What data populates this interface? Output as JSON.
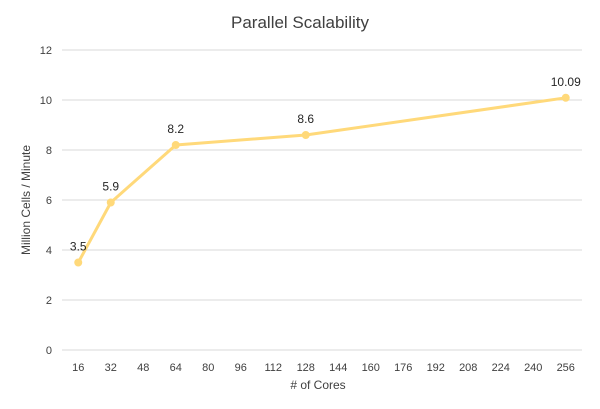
{
  "chart_data": {
    "type": "line",
    "title": "Parallel Scalability",
    "xlabel": "# of Cores",
    "ylabel": "Million Cells / Minute",
    "x_ticks": [
      16,
      32,
      48,
      64,
      80,
      96,
      112,
      128,
      144,
      160,
      176,
      192,
      208,
      224,
      240,
      256
    ],
    "y_ticks": [
      0,
      2,
      4,
      6,
      8,
      10,
      12
    ],
    "xlim": [
      8,
      264
    ],
    "ylim": [
      0,
      12
    ],
    "grid": "horizontal",
    "series": [
      {
        "x": [
          16,
          32,
          64,
          128,
          256
        ],
        "y": [
          3.5,
          5.9,
          8.2,
          8.6,
          10.09
        ],
        "labels": [
          "3.5",
          "5.9",
          "8.2",
          "8.6",
          "10.09"
        ],
        "color": "#FFD97A",
        "marker": "circle"
      }
    ]
  }
}
